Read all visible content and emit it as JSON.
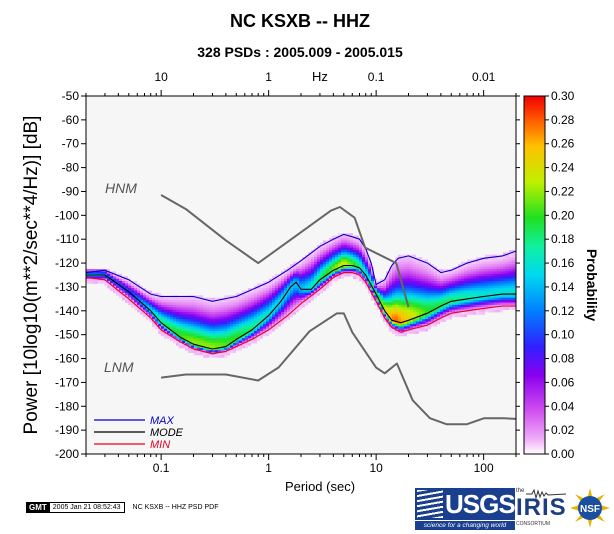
{
  "header": {
    "title": "NC KSXB -- HHZ",
    "subtitle": "328 PSDs : 2005.009 - 2005.015"
  },
  "axes": {
    "ylabel": "Power [10log10(m**2/sec**4/Hz)] [dB]",
    "xlabel": "Period (sec)",
    "top_axis_label": "Hz",
    "colorbar_label": "Probability"
  },
  "footer": {
    "gmt_tag": "GMT",
    "gmt_timestamp": "2005 Jan 21 08:52:43",
    "caption": "NC KSXB -- HHZ PSD PDF",
    "usgs_text": "USGS",
    "usgs_tagline": "science for a changing world",
    "iris_the": "the",
    "iris_text": "IRIS",
    "iris_sub": "CONSORTIUM",
    "nsf_text": "NSF"
  },
  "colors": {
    "max_line": "#0000cc",
    "mode_line": "#000000",
    "min_line": "#e8001c",
    "noise_model": "#666666",
    "colormap": [
      "#ffffff",
      "#e070f0",
      "#9a00f0",
      "#3020ff",
      "#00c8ff",
      "#10f0a0",
      "#20e020",
      "#d0f000",
      "#ffb000",
      "#ff3000"
    ]
  },
  "chart_data": {
    "type": "heatmap",
    "title": "NC KSXB -- HHZ",
    "subtitle": "328 PSDs : 2005.009 - 2005.015",
    "xlabel": "Period (sec)",
    "ylabel": "Power [10log10(m**2/sec**4/Hz)] [dB]",
    "x_scale": "log",
    "xlim": [
      0.02,
      200
    ],
    "ylim": [
      -200,
      -50
    ],
    "x_ticks": [
      {
        "value": 0.1,
        "label": "0.1"
      },
      {
        "value": 1,
        "label": "1"
      },
      {
        "value": 10,
        "label": "10"
      },
      {
        "value": 100,
        "label": "100"
      }
    ],
    "y_ticks": [
      -50,
      -60,
      -70,
      -80,
      -90,
      -100,
      -110,
      -120,
      -130,
      -140,
      -150,
      -160,
      -170,
      -180,
      -190,
      -200
    ],
    "top_ticks": [
      {
        "period": 0.1,
        "label": "10"
      },
      {
        "period": 1,
        "label": "1"
      },
      {
        "period": 10,
        "label": "0.1"
      },
      {
        "period": 100,
        "label": "0.01"
      }
    ],
    "colorbar": {
      "label": "Probability",
      "range": [
        0,
        0.3
      ],
      "ticks": [
        "0.00",
        "0.02",
        "0.04",
        "0.06",
        "0.08",
        "0.10",
        "0.12",
        "0.14",
        "0.16",
        "0.18",
        "0.20",
        "0.22",
        "0.24",
        "0.26",
        "0.28",
        "0.30"
      ]
    },
    "legend": {
      "placement": "bottom-left",
      "entries": [
        {
          "name": "MAX",
          "color": "#0000cc"
        },
        {
          "name": "MODE",
          "color": "#000000"
        },
        {
          "name": "MIN",
          "color": "#e8001c"
        }
      ]
    },
    "series": [
      {
        "name": "MAX",
        "points": [
          [
            0.02,
            -124
          ],
          [
            0.03,
            -123
          ],
          [
            0.05,
            -127
          ],
          [
            0.08,
            -133
          ],
          [
            0.1,
            -134
          ],
          [
            0.15,
            -134
          ],
          [
            0.2,
            -134
          ],
          [
            0.3,
            -136
          ],
          [
            0.5,
            -134
          ],
          [
            0.8,
            -130
          ],
          [
            1,
            -128
          ],
          [
            1.5,
            -123
          ],
          [
            2,
            -119
          ],
          [
            3,
            -113
          ],
          [
            4,
            -110
          ],
          [
            5,
            -108
          ],
          [
            6,
            -109
          ],
          [
            7,
            -110
          ],
          [
            8,
            -114
          ],
          [
            9,
            -120
          ],
          [
            10,
            -129
          ],
          [
            12,
            -127
          ],
          [
            14,
            -121
          ],
          [
            16,
            -118
          ],
          [
            20,
            -117
          ],
          [
            30,
            -120
          ],
          [
            40,
            -124
          ],
          [
            50,
            -123
          ],
          [
            70,
            -120
          ],
          [
            100,
            -118
          ],
          [
            150,
            -117
          ],
          [
            200,
            -115
          ]
        ]
      },
      {
        "name": "MODE",
        "points": [
          [
            0.02,
            -125
          ],
          [
            0.03,
            -125
          ],
          [
            0.05,
            -132
          ],
          [
            0.08,
            -140
          ],
          [
            0.1,
            -145
          ],
          [
            0.15,
            -151
          ],
          [
            0.2,
            -154
          ],
          [
            0.3,
            -156
          ],
          [
            0.4,
            -155
          ],
          [
            0.5,
            -152
          ],
          [
            0.7,
            -148
          ],
          [
            1,
            -142
          ],
          [
            1.3,
            -136
          ],
          [
            1.6,
            -130
          ],
          [
            1.8,
            -128
          ],
          [
            2,
            -131
          ],
          [
            2.5,
            -131
          ],
          [
            3,
            -127
          ],
          [
            4,
            -123
          ],
          [
            5,
            -121
          ],
          [
            6,
            -121
          ],
          [
            7,
            -122
          ],
          [
            8,
            -125
          ],
          [
            10,
            -133
          ],
          [
            12,
            -140
          ],
          [
            14,
            -144
          ],
          [
            17,
            -145
          ],
          [
            20,
            -144
          ],
          [
            30,
            -141
          ],
          [
            40,
            -138
          ],
          [
            50,
            -136
          ],
          [
            70,
            -135
          ],
          [
            100,
            -134
          ],
          [
            150,
            -133
          ],
          [
            200,
            -133
          ]
        ]
      },
      {
        "name": "MIN",
        "points": [
          [
            0.02,
            -126
          ],
          [
            0.03,
            -127
          ],
          [
            0.05,
            -135
          ],
          [
            0.08,
            -143
          ],
          [
            0.1,
            -148
          ],
          [
            0.15,
            -153
          ],
          [
            0.2,
            -156
          ],
          [
            0.3,
            -158
          ],
          [
            0.4,
            -157
          ],
          [
            0.5,
            -155
          ],
          [
            0.7,
            -152
          ],
          [
            1,
            -148
          ],
          [
            1.5,
            -142
          ],
          [
            2,
            -137
          ],
          [
            3,
            -131
          ],
          [
            4,
            -126
          ],
          [
            5,
            -124
          ],
          [
            6,
            -124
          ],
          [
            7,
            -125
          ],
          [
            8,
            -128
          ],
          [
            10,
            -136
          ],
          [
            12,
            -143
          ],
          [
            14,
            -147
          ],
          [
            17,
            -149
          ],
          [
            20,
            -148
          ],
          [
            30,
            -146
          ],
          [
            40,
            -143
          ],
          [
            50,
            -141
          ],
          [
            70,
            -140
          ],
          [
            100,
            -139
          ],
          [
            150,
            -138
          ],
          [
            200,
            -138
          ]
        ]
      },
      {
        "name": "HNM",
        "points": [
          [
            0.1,
            -91.5
          ],
          [
            0.17,
            -97.4
          ],
          [
            0.4,
            -110.5
          ],
          [
            0.8,
            -120
          ],
          [
            3.8,
            -98
          ],
          [
            4.6,
            -96.5
          ],
          [
            6.3,
            -101
          ],
          [
            7.9,
            -113.5
          ],
          [
            15.4,
            -120
          ],
          [
            20,
            -138.5
          ]
        ]
      },
      {
        "name": "LNM",
        "points": [
          [
            0.1,
            -168
          ],
          [
            0.17,
            -166.7
          ],
          [
            0.4,
            -166.7
          ],
          [
            0.8,
            -169.2
          ],
          [
            1.24,
            -163.7
          ],
          [
            2.4,
            -148.6
          ],
          [
            4.3,
            -141.1
          ],
          [
            5,
            -141.1
          ],
          [
            6,
            -149
          ],
          [
            10,
            -163.8
          ],
          [
            12,
            -166.2
          ],
          [
            15.6,
            -162.1
          ],
          [
            21.9,
            -177.5
          ],
          [
            31.6,
            -185
          ],
          [
            45,
            -187.5
          ],
          [
            70,
            -187.5
          ],
          [
            101,
            -185
          ],
          [
            154,
            -185
          ],
          [
            200,
            -185.3
          ]
        ]
      }
    ],
    "annotations": [
      "HNM",
      "LNM"
    ],
    "density": [
      {
        "x": 0.025,
        "y": -124.5,
        "p": 0.14
      },
      {
        "x": 0.05,
        "y": -130,
        "p": 0.1
      },
      {
        "x": 0.1,
        "y": -146,
        "p": 0.18
      },
      {
        "x": 0.2,
        "y": -154,
        "p": 0.22
      },
      {
        "x": 0.3,
        "y": -156,
        "p": 0.22
      },
      {
        "x": 0.5,
        "y": -152,
        "p": 0.2
      },
      {
        "x": 1,
        "y": -142,
        "p": 0.16
      },
      {
        "x": 2,
        "y": -131,
        "p": 0.14
      },
      {
        "x": 5,
        "y": -121,
        "p": 0.24
      },
      {
        "x": 8,
        "y": -125,
        "p": 0.16
      },
      {
        "x": 15,
        "y": -145,
        "p": 0.28
      },
      {
        "x": 30,
        "y": -141,
        "p": 0.2
      },
      {
        "x": 100,
        "y": -134,
        "p": 0.16
      },
      {
        "x": 200,
        "y": -133,
        "p": 0.16
      }
    ],
    "grid": false
  }
}
